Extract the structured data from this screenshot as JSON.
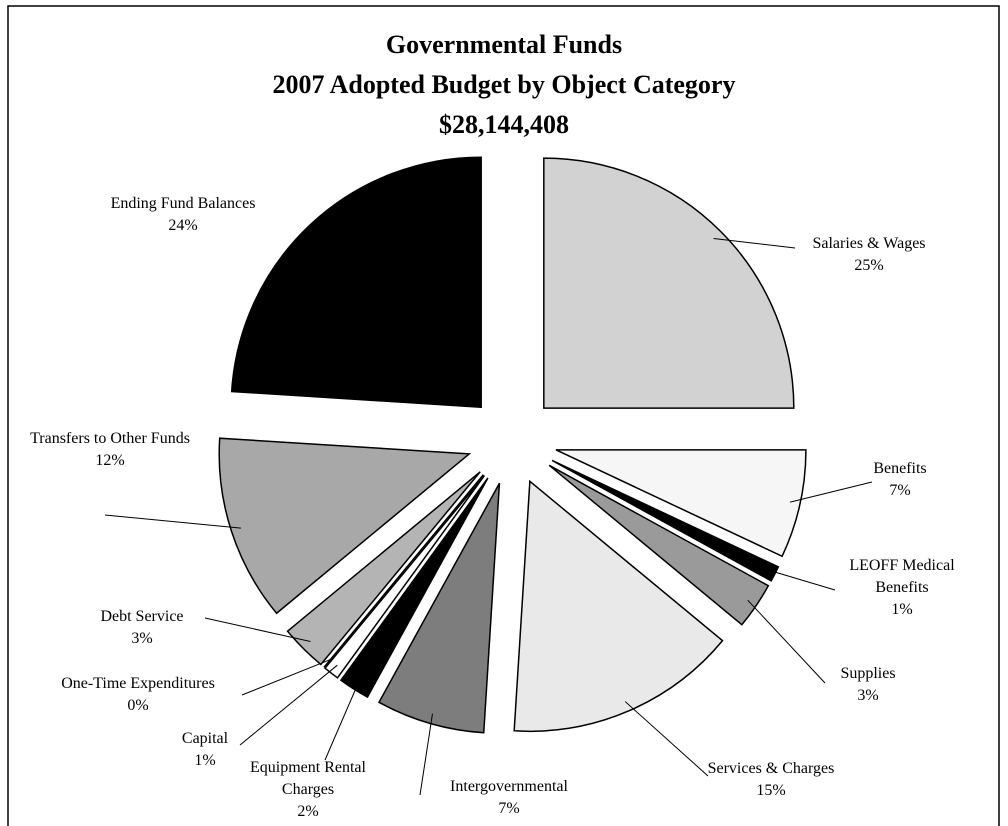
{
  "chart_data": {
    "type": "pie",
    "title": "Governmental Funds",
    "subtitle": "2007 Adopted Budget by Object Category",
    "annotations": [
      "$28,144,408"
    ],
    "categories": [
      "Salaries & Wages",
      "Benefits",
      "LEOFF Medical Benefits",
      "Supplies",
      "Services & Charges",
      "Intergovernmental",
      "Equipment Rental Charges",
      "Capital",
      "One-Time Expenditures",
      "Debt Service",
      "Transfers to Other Funds",
      "Ending Fund Balances"
    ],
    "values": [
      25,
      7,
      1,
      3,
      15,
      7,
      2,
      1,
      0,
      3,
      12,
      24
    ],
    "value_labels": [
      "25%",
      "7%",
      "1%",
      "3%",
      "15%",
      "7%",
      "2%",
      "1%",
      "0%",
      "3%",
      "12%",
      "24%"
    ],
    "colors": [
      "#d2d2d2",
      "#f6f6f6",
      "#000000",
      "#9a9a9a",
      "#e9e9e9",
      "#7d7d7d",
      "#000000",
      "#ffffff",
      "#1a1a5e",
      "#b4b4b4",
      "#a8a8a8",
      "#000000"
    ]
  }
}
